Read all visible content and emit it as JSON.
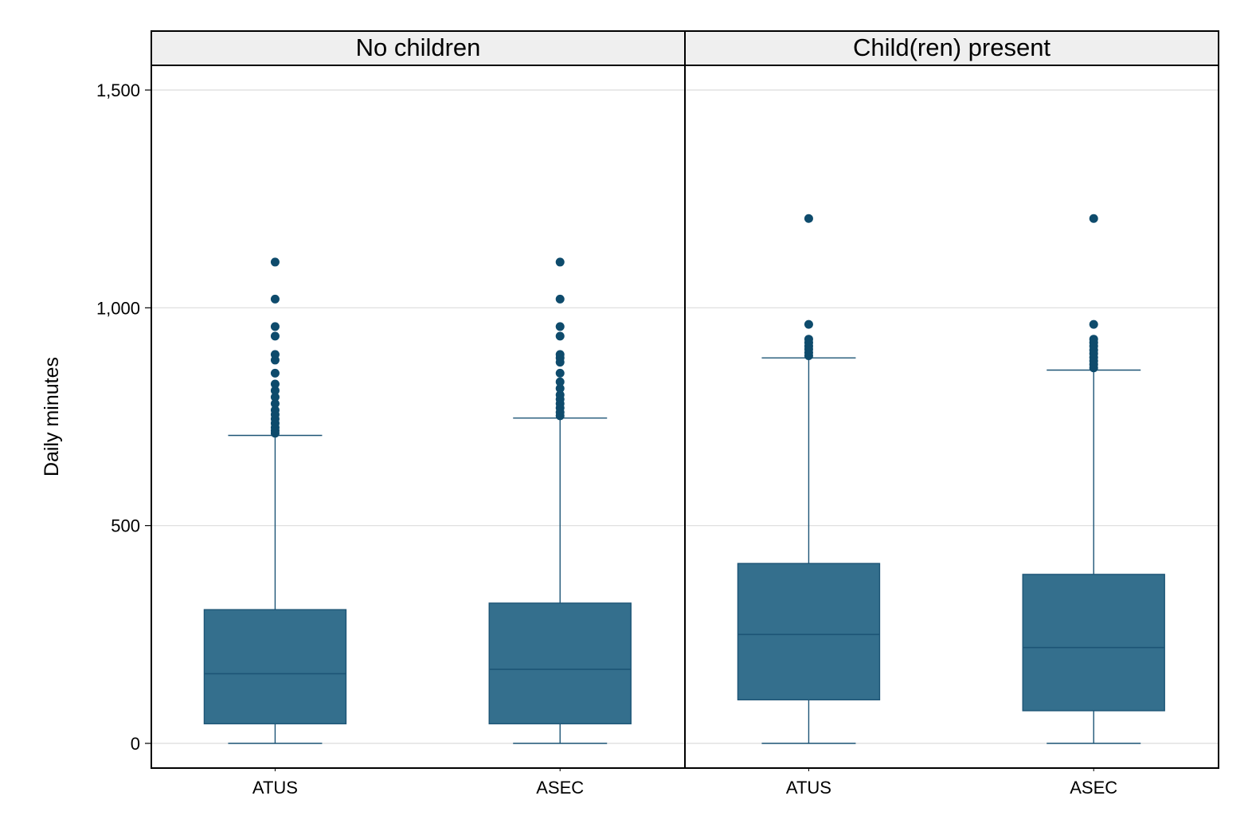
{
  "chart_data": {
    "type": "box",
    "ylabel": "Daily minutes",
    "ylim": [
      -55,
      1555
    ],
    "yticks": [
      0,
      500,
      1000,
      1500
    ],
    "ytick_labels": [
      "0",
      "500",
      "1,000",
      "1,500"
    ],
    "grid": true,
    "categories": [
      "ATUS",
      "ASEC"
    ],
    "colors": {
      "box_fill": "#346F8D",
      "box_line": "#1D5576",
      "outlier": "#0E4B6C",
      "grid": "#DCDCDC",
      "header_bg": "#EFEFEF"
    },
    "panels": [
      {
        "title": "No children",
        "boxes": [
          {
            "category": "ATUS",
            "whisker_low": 0,
            "q1": 45,
            "median": 160,
            "q3": 307,
            "whisker_high": 707,
            "outliers": [
              712,
              718,
              725,
              735,
              745,
              755,
              765,
              780,
              795,
              810,
              825,
              850,
              880,
              893,
              935,
              957,
              1020,
              1105
            ]
          },
          {
            "category": "ASEC",
            "whisker_low": 0,
            "q1": 45,
            "median": 170,
            "q3": 322,
            "whisker_high": 747,
            "outliers": [
              752,
              760,
              770,
              780,
              790,
              800,
              815,
              830,
              850,
              875,
              885,
              893,
              935,
              957,
              1020,
              1105
            ]
          }
        ]
      },
      {
        "title": "Child(ren) present",
        "boxes": [
          {
            "category": "ATUS",
            "whisker_low": 0,
            "q1": 100,
            "median": 250,
            "q3": 413,
            "whisker_high": 885,
            "outliers": [
              890,
              897,
              905,
              912,
              920,
              928,
              962,
              1205
            ]
          },
          {
            "category": "ASEC",
            "whisker_low": 0,
            "q1": 75,
            "median": 220,
            "q3": 388,
            "whisker_high": 857,
            "outliers": [
              862,
              870,
              878,
              886,
              895,
              903,
              912,
              920,
              928,
              962,
              1205
            ]
          }
        ]
      }
    ]
  }
}
